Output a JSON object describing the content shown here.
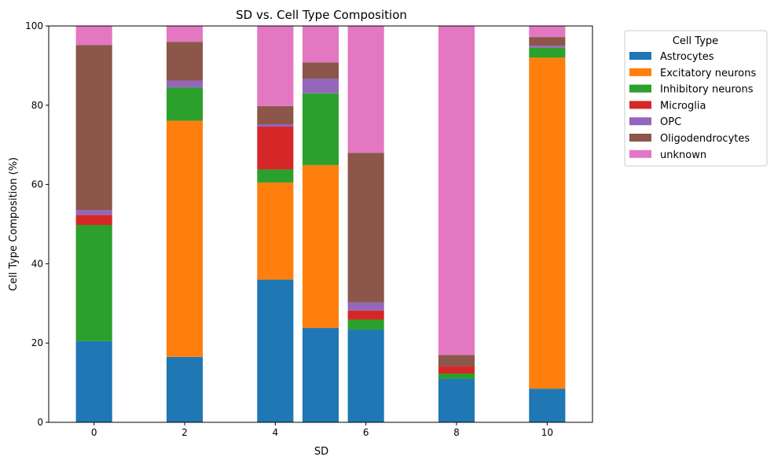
{
  "chart_data": {
    "type": "bar",
    "stacked": true,
    "title": "SD vs. Cell Type Composition",
    "xlabel": "SD",
    "ylabel": "Cell Type Composition (%)",
    "xlim": [
      -1,
      11
    ],
    "ylim": [
      0,
      100
    ],
    "xticks": [
      0,
      2,
      4,
      6,
      8,
      10
    ],
    "yticks": [
      0,
      20,
      40,
      60,
      80,
      100
    ],
    "x": [
      0,
      2,
      4,
      5,
      6,
      8,
      10
    ],
    "legend_title": "Cell Type",
    "legend_position": "outside-right",
    "grid": false,
    "series": [
      {
        "name": "Astrocytes",
        "color": "#1f77b4",
        "values": [
          20.5,
          16.5,
          36.0,
          23.8,
          23.4,
          11.0,
          8.5
        ]
      },
      {
        "name": "Excitatory neurons",
        "color": "#ff7f0e",
        "values": [
          0.0,
          59.6,
          24.5,
          41.1,
          0.0,
          0.0,
          83.5
        ]
      },
      {
        "name": "Inhibitory neurons",
        "color": "#2ca02c",
        "values": [
          29.3,
          8.4,
          3.3,
          18.1,
          2.5,
          1.3,
          2.5
        ]
      },
      {
        "name": "Microglia",
        "color": "#d62728",
        "values": [
          2.5,
          0.0,
          10.8,
          0.0,
          2.3,
          1.8,
          0.0
        ]
      },
      {
        "name": "OPC",
        "color": "#9467bd",
        "values": [
          1.2,
          1.7,
          0.6,
          3.7,
          2.0,
          0.0,
          0.5
        ]
      },
      {
        "name": "Oligodendrocytes",
        "color": "#8c564b",
        "values": [
          41.7,
          9.8,
          4.6,
          4.1,
          37.8,
          2.9,
          2.2
        ]
      },
      {
        "name": "unknown",
        "color": "#e377c2",
        "values": [
          4.8,
          4.0,
          20.2,
          9.2,
          32.0,
          83.0,
          2.8
        ]
      }
    ]
  }
}
